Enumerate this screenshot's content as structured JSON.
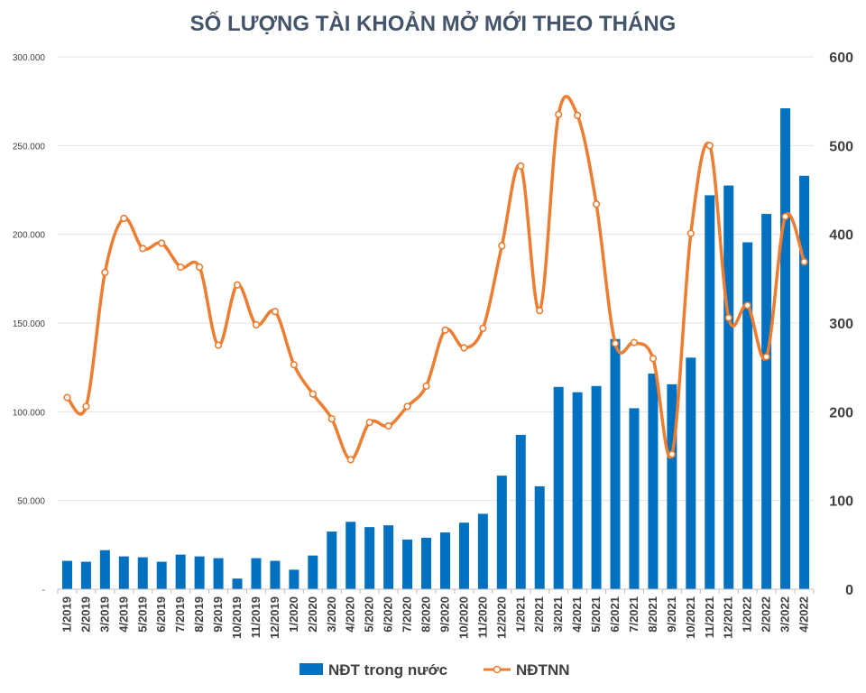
{
  "chart_data": {
    "type": "bar+line",
    "title": "SỐ LƯỢNG TÀI KHOẢN MỞ MỚI THEO THÁNG",
    "categories": [
      "1/2019",
      "2/2019",
      "3/2019",
      "4/2019",
      "5/2019",
      "6/2019",
      "7/2019",
      "8/2019",
      "9/2019",
      "10/2019",
      "11/2019",
      "12/2019",
      "1/2020",
      "2/2020",
      "3/2020",
      "4/2020",
      "5/2020",
      "6/2020",
      "7/2020",
      "8/2020",
      "9/2020",
      "10/2020",
      "11/2020",
      "12/2020",
      "1/2021",
      "2/2021",
      "3/2021",
      "4/2021",
      "5/2021",
      "6/2021",
      "7/2021",
      "8/2021",
      "9/2021",
      "10/2021",
      "11/2021",
      "12/2021",
      "1/2022",
      "2/2022",
      "3/2022",
      "4/2022"
    ],
    "series": [
      {
        "name": "NĐT trong nước",
        "type": "bar",
        "axis": "left",
        "color": "#0070C0",
        "values": [
          16000,
          15500,
          22000,
          18500,
          18000,
          15500,
          19500,
          18500,
          17500,
          6000,
          17500,
          16000,
          11000,
          19000,
          32500,
          38000,
          35000,
          36000,
          28000,
          29000,
          32000,
          37500,
          42500,
          64000,
          87000,
          58000,
          114000,
          111000,
          114500,
          141000,
          102000,
          121500,
          115500,
          130500,
          222000,
          227500,
          195500,
          211500,
          271000,
          233000
        ]
      },
      {
        "name": "NĐTNN",
        "type": "line",
        "axis": "right",
        "color": "#ED7D31",
        "values": [
          216,
          206,
          357,
          418,
          384,
          390,
          363,
          363,
          275,
          343,
          298,
          313,
          253,
          220,
          192,
          146,
          188,
          184,
          206,
          229,
          292,
          272,
          294,
          387,
          477,
          314,
          535,
          534,
          434,
          277,
          278,
          260,
          152,
          401,
          500,
          306,
          320,
          262,
          420,
          369
        ]
      }
    ],
    "yaxis_left": {
      "ylim": [
        0,
        300000
      ],
      "ticks": [
        {
          "value": 0,
          "label": "-"
        },
        {
          "value": 50000,
          "label": "50.000"
        },
        {
          "value": 100000,
          "label": "100.000"
        },
        {
          "value": 150000,
          "label": "150.000"
        },
        {
          "value": 200000,
          "label": "200.000"
        },
        {
          "value": 250000,
          "label": "250.000"
        },
        {
          "value": 300000,
          "label": "300.000"
        }
      ]
    },
    "yaxis_right": {
      "ylim": [
        0,
        600
      ],
      "ticks": [
        {
          "value": 0,
          "label": "0"
        },
        {
          "value": 100,
          "label": "100"
        },
        {
          "value": 200,
          "label": "200"
        },
        {
          "value": 300,
          "label": "300"
        },
        {
          "value": 400,
          "label": "400"
        },
        {
          "value": 500,
          "label": "500"
        },
        {
          "value": 600,
          "label": "600"
        }
      ]
    },
    "grid": true,
    "legend_position": "bottom"
  }
}
